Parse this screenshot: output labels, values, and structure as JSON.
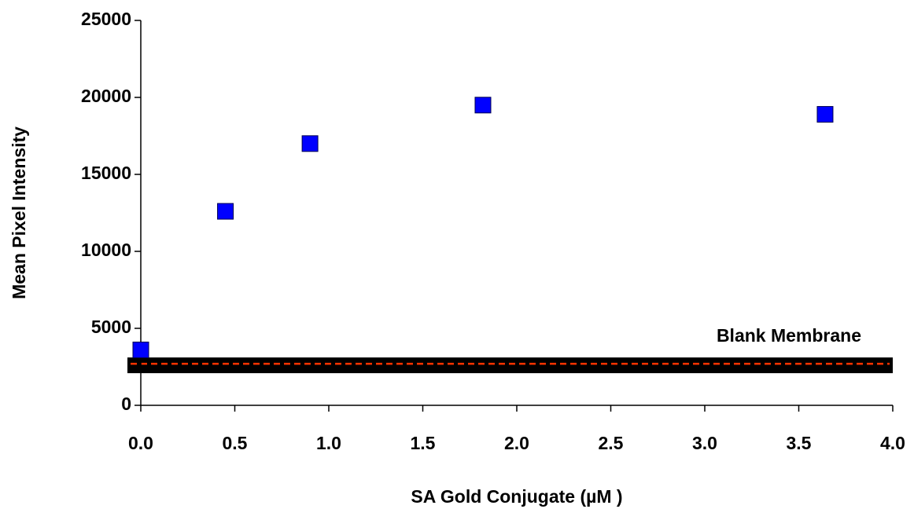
{
  "chart_data": {
    "type": "scatter",
    "x_label": "SA Gold Conjugate (µM )",
    "y_label": "Mean Pixel Intensity",
    "series": [
      {
        "color": "#0000ff",
        "x": [
          0,
          0.45,
          0.9,
          1.82,
          3.64
        ],
        "values": [
          3600,
          12600,
          17000,
          19500,
          18900
        ]
      }
    ],
    "xlim": [
      0,
      4
    ],
    "xticks": [
      {
        "value": 0,
        "label": "0.0"
      },
      {
        "value": 0.5,
        "label": "0.5"
      },
      {
        "value": 1,
        "label": "1.0"
      },
      {
        "value": 1.5,
        "label": "1.5"
      },
      {
        "value": 2,
        "label": "2.0"
      },
      {
        "value": 2.5,
        "label": "2.5"
      },
      {
        "value": 3,
        "label": "3.0"
      },
      {
        "value": 3.5,
        "label": "3.5"
      },
      {
        "value": 4,
        "label": "4.0"
      }
    ],
    "ylim": [
      0,
      25000
    ],
    "yticks": [
      0,
      5000,
      10000,
      15000,
      20000,
      25000
    ],
    "reference_lines": [
      {
        "value": 2700,
        "label": "Blank Membrane",
        "color": "#ff3300"
      }
    ]
  }
}
